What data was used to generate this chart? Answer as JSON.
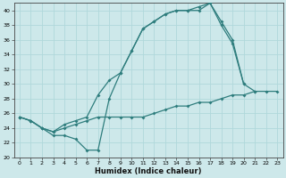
{
  "xlabel": "Humidex (Indice chaleur)",
  "bg_color": "#cde8ea",
  "grid_color": "#b0d8db",
  "line_color": "#2e7d7d",
  "xlim": [
    -0.5,
    23.5
  ],
  "ylim": [
    20,
    41
  ],
  "xticks": [
    0,
    1,
    2,
    3,
    4,
    5,
    6,
    7,
    8,
    9,
    10,
    11,
    12,
    13,
    14,
    15,
    16,
    17,
    18,
    19,
    20,
    21,
    22,
    23
  ],
  "yticks": [
    20,
    22,
    24,
    26,
    28,
    30,
    32,
    34,
    36,
    38,
    40
  ],
  "curve1_x": [
    0,
    1,
    2,
    3,
    4,
    5,
    6,
    7,
    8,
    9,
    10,
    11,
    12,
    13,
    14,
    15,
    16,
    17,
    18,
    19,
    20,
    21
  ],
  "curve1_y": [
    25.5,
    25.0,
    24.0,
    23.0,
    23.0,
    22.5,
    21.0,
    21.0,
    28.0,
    31.5,
    34.5,
    37.5,
    38.5,
    39.5,
    40.0,
    40.0,
    40.5,
    41.0,
    38.5,
    36.0,
    30.0,
    29.0
  ],
  "curve2_x": [
    0,
    1,
    2,
    3,
    4,
    5,
    6,
    7,
    8,
    9,
    10,
    11,
    12,
    13,
    14,
    15,
    16,
    17,
    18,
    19,
    20
  ],
  "curve2_y": [
    25.5,
    25.0,
    24.0,
    23.5,
    24.5,
    25.0,
    25.5,
    28.5,
    30.5,
    31.5,
    34.5,
    37.5,
    38.5,
    39.5,
    40.0,
    40.0,
    40.0,
    41.0,
    38.0,
    35.5,
    30.0
  ],
  "curve3_x": [
    0,
    1,
    2,
    3,
    4,
    5,
    6,
    7,
    8,
    9,
    10,
    11,
    12,
    13,
    14,
    15,
    16,
    17,
    18,
    19,
    20,
    21,
    22,
    23
  ],
  "curve3_y": [
    25.5,
    25.0,
    24.0,
    23.5,
    24.0,
    24.5,
    25.0,
    25.5,
    25.5,
    25.5,
    25.5,
    25.5,
    26.0,
    26.5,
    27.0,
    27.0,
    27.5,
    27.5,
    28.0,
    28.5,
    28.5,
    29.0,
    29.0,
    29.0
  ]
}
